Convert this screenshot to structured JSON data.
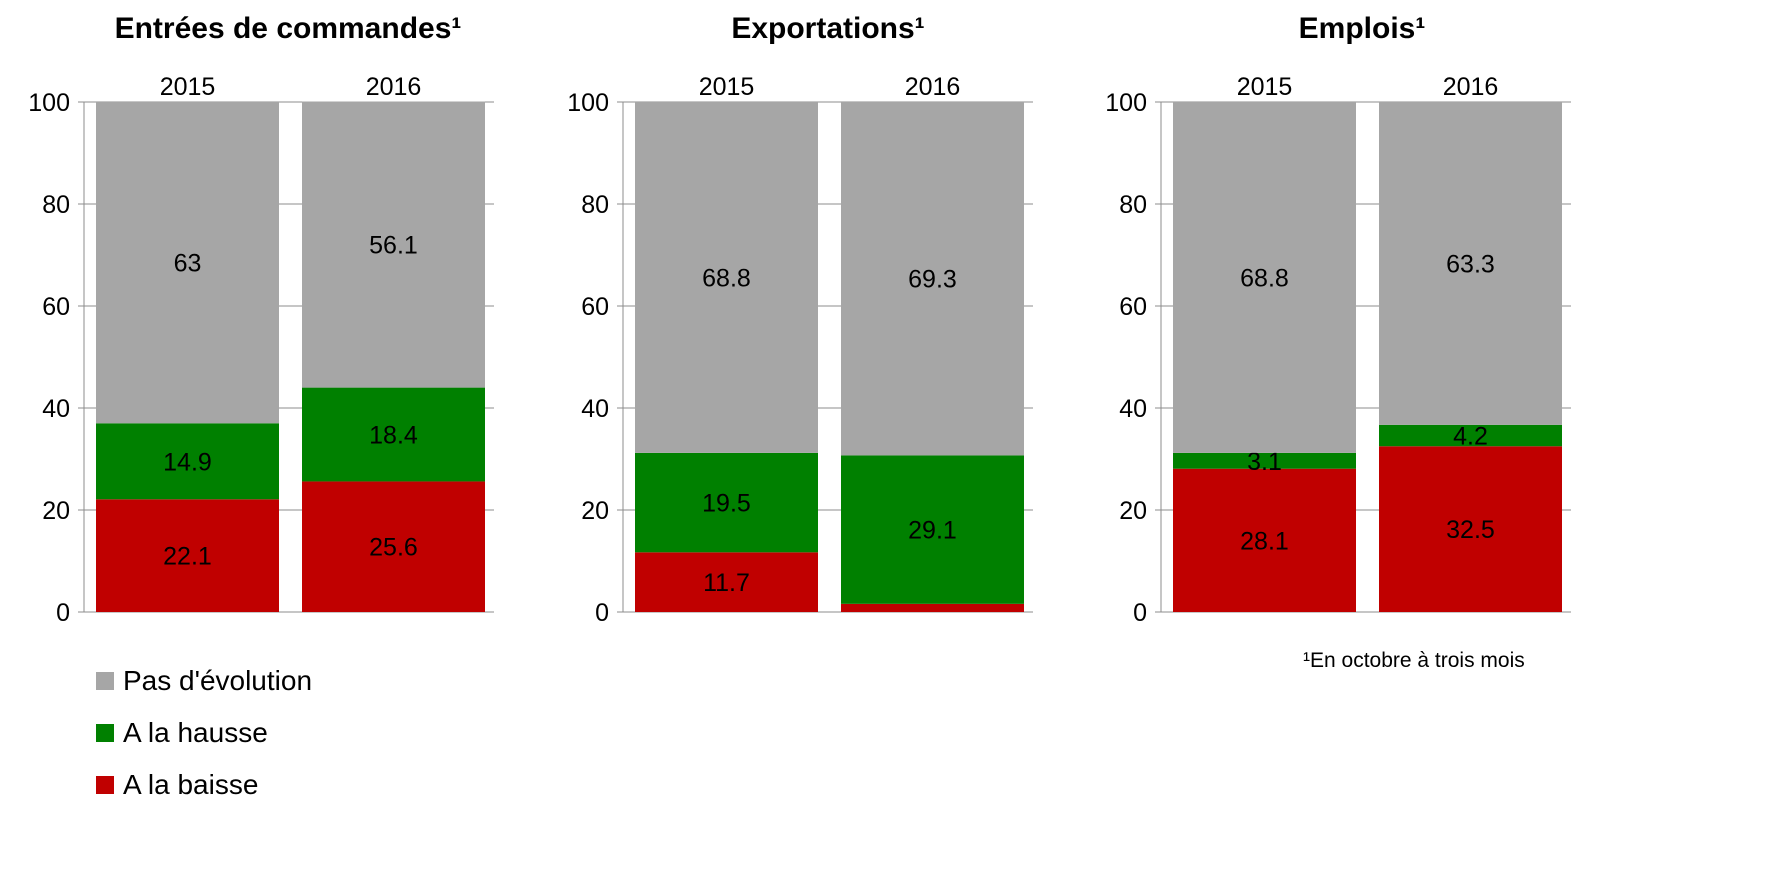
{
  "chart_data": [
    {
      "type": "bar",
      "title": "Entrées de commandes¹",
      "categories": [
        "2015",
        "2016"
      ],
      "series": [
        {
          "name": "A la baisse",
          "values": [
            22.1,
            25.6
          ],
          "color": "#c00000"
        },
        {
          "name": "A la hausse",
          "values": [
            14.9,
            18.4
          ],
          "color": "#008000"
        },
        {
          "name": "Pas d'évolution",
          "values": [
            63,
            56.1
          ],
          "color": "#a6a6a6"
        }
      ],
      "ylim": [
        0,
        100
      ],
      "yticks": [
        "0",
        "20",
        "40",
        "60",
        "80",
        "100"
      ]
    },
    {
      "type": "bar",
      "title": "Exportations¹",
      "categories": [
        "2015",
        "2016"
      ],
      "series": [
        {
          "name": "A la baisse",
          "values": [
            11.7,
            1.6
          ],
          "color": "#c00000",
          "labels": [
            "11.7",
            ""
          ]
        },
        {
          "name": "A la hausse",
          "values": [
            19.5,
            29.1
          ],
          "color": "#008000"
        },
        {
          "name": "Pas d'évolution",
          "values": [
            68.8,
            69.3
          ],
          "color": "#a6a6a6"
        }
      ],
      "ylim": [
        0,
        100
      ],
      "yticks": [
        "0",
        "20",
        "40",
        "60",
        "80",
        "100"
      ]
    },
    {
      "type": "bar",
      "title": "Emplois¹",
      "categories": [
        "2015",
        "2016"
      ],
      "series": [
        {
          "name": "A la baisse",
          "values": [
            28.1,
            32.5
          ],
          "color": "#c00000"
        },
        {
          "name": "A la hausse",
          "values": [
            3.1,
            4.2
          ],
          "color": "#008000"
        },
        {
          "name": "Pas d'évolution",
          "values": [
            68.8,
            63.3
          ],
          "color": "#a6a6a6"
        }
      ],
      "ylim": [
        0,
        100
      ],
      "yticks": [
        "0",
        "20",
        "40",
        "60",
        "80",
        "100"
      ]
    }
  ],
  "legend": {
    "items": [
      {
        "label": "Pas d'évolution",
        "color": "#a6a6a6"
      },
      {
        "label": "A la hausse",
        "color": "#008000"
      },
      {
        "label": "A la baisse",
        "color": "#c00000"
      }
    ]
  },
  "footnote": "¹En octobre à trois mois"
}
